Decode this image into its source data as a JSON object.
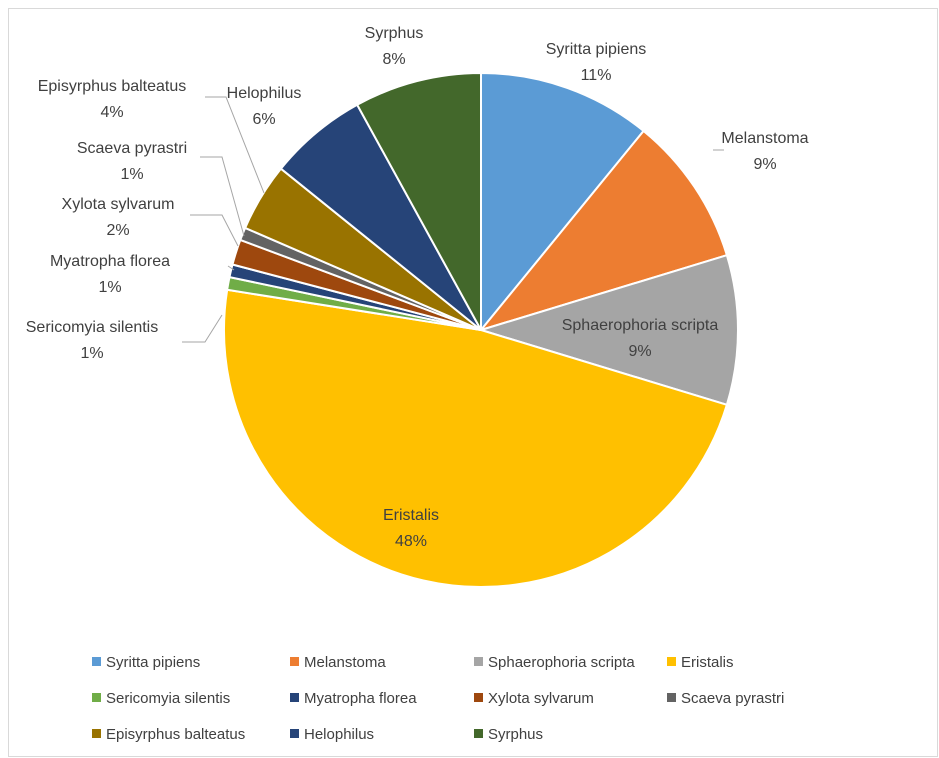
{
  "chart_data": {
    "type": "pie",
    "title": "",
    "legend_position": "bottom",
    "categories": [
      "Syritta pipiens",
      "Melanstoma",
      "Sphaerophoria scripta",
      "Eristalis",
      "Sericomyia silentis",
      "Myatropha florea",
      "Xylota sylvarum",
      "Scaeva pyrastri",
      "Episyrphus balteatus",
      "Helophilus",
      "Syrphus"
    ],
    "values": [
      10.9,
      9.4,
      9.4,
      47.8,
      0.8,
      0.8,
      1.6,
      0.8,
      4.3,
      6.2,
      8.0
    ],
    "labels": [
      "11%",
      "9%",
      "9%",
      "48%",
      "1%",
      "1%",
      "2%",
      "1%",
      "4%",
      "6%",
      "8%"
    ],
    "colors": [
      "#5b9bd5",
      "#ed7d31",
      "#a5a5a5",
      "#ffc000",
      "#70ad47",
      "#264478",
      "#9e480e",
      "#636363",
      "#997300",
      "#264478",
      "#43682b"
    ]
  }
}
